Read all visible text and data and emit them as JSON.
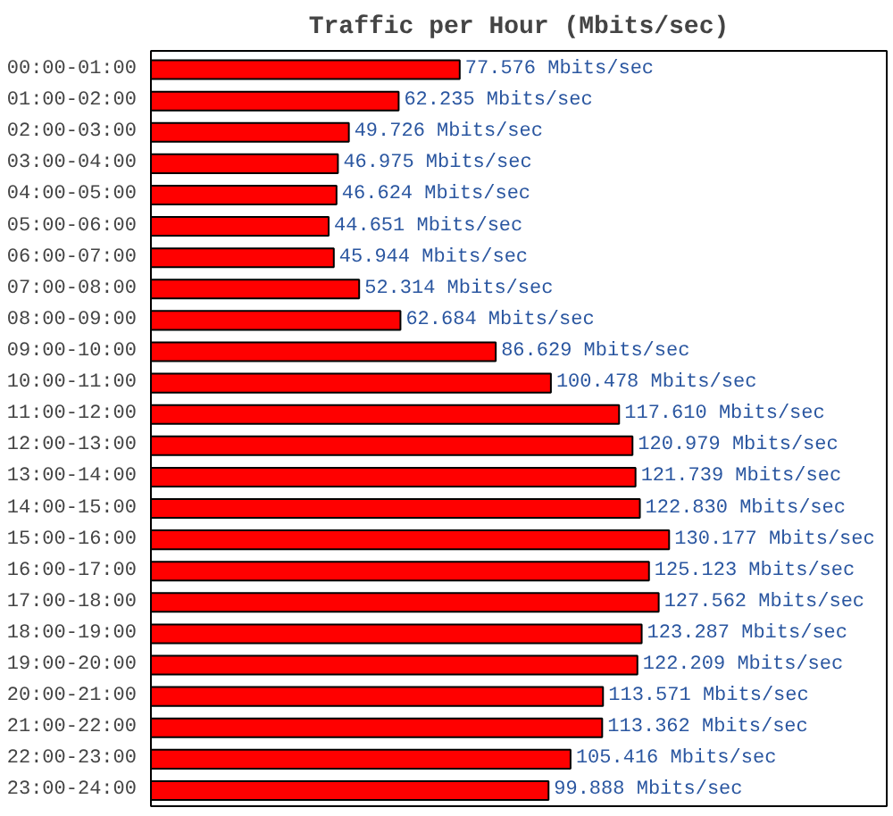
{
  "chart_data": {
    "type": "bar",
    "orientation": "horizontal",
    "title": "Traffic per Hour (Mbits/sec)",
    "categories": [
      "00:00-01:00",
      "01:00-02:00",
      "02:00-03:00",
      "03:00-04:00",
      "04:00-05:00",
      "05:00-06:00",
      "06:00-07:00",
      "07:00-08:00",
      "08:00-09:00",
      "09:00-10:00",
      "10:00-11:00",
      "11:00-12:00",
      "12:00-13:00",
      "13:00-14:00",
      "14:00-15:00",
      "15:00-16:00",
      "16:00-17:00",
      "17:00-18:00",
      "18:00-19:00",
      "19:00-20:00",
      "20:00-21:00",
      "21:00-22:00",
      "22:00-23:00",
      "23:00-24:00"
    ],
    "values": [
      77.576,
      62.235,
      49.726,
      46.975,
      46.624,
      44.651,
      45.944,
      52.314,
      62.684,
      86.629,
      100.478,
      117.61,
      120.979,
      121.739,
      122.83,
      130.177,
      125.123,
      127.562,
      123.287,
      122.209,
      113.571,
      113.362,
      105.416,
      99.888
    ],
    "value_labels": [
      "77.576 Mbits/sec",
      "62.235 Mbits/sec",
      "49.726 Mbits/sec",
      "46.975 Mbits/sec",
      "46.624 Mbits/sec",
      "44.651 Mbits/sec",
      "45.944 Mbits/sec",
      "52.314 Mbits/sec",
      "62.684 Mbits/sec",
      "86.629 Mbits/sec",
      "100.478 Mbits/sec",
      "117.610 Mbits/sec",
      "120.979 Mbits/sec",
      "121.739 Mbits/sec",
      "122.830 Mbits/sec",
      "130.177 Mbits/sec",
      "125.123 Mbits/sec",
      "127.562 Mbits/sec",
      "123.287 Mbits/sec",
      "122.209 Mbits/sec",
      "113.571 Mbits/sec",
      "113.362 Mbits/sec",
      "105.416 Mbits/sec",
      "99.888 Mbits/sec"
    ],
    "color": "#ff0000",
    "grid": false
  }
}
